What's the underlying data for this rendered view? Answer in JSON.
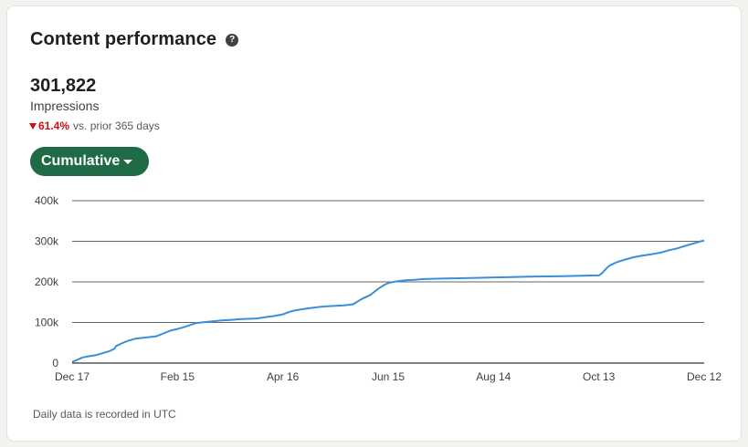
{
  "header": {
    "title": "Content performance",
    "help_icon": "question-circle-icon"
  },
  "metric": {
    "value": "301,822",
    "label": "Impressions",
    "change_pct": "61.4%",
    "change_text": "vs. prior 365 days",
    "change_direction": "down"
  },
  "dropdown": {
    "label": "Cumulative"
  },
  "footnote": "Daily data is recorded in UTC",
  "colors": {
    "line": "#3a8fd9",
    "button": "#1e6b45",
    "negative": "#cc1016"
  },
  "chart_data": {
    "type": "line",
    "title": "",
    "xlabel": "",
    "ylabel": "",
    "ylim": [
      0,
      400000
    ],
    "yticks": [
      0,
      100000,
      200000,
      300000,
      400000
    ],
    "ytick_labels": [
      "0",
      "100k",
      "200k",
      "300k",
      "400k"
    ],
    "xticks": [
      "Dec 17",
      "Feb 15",
      "Apr 16",
      "Jun 15",
      "Aug 14",
      "Oct 13",
      "Dec 12"
    ],
    "x_range_days": [
      0,
      360
    ],
    "grid": "horizontal",
    "series": [
      {
        "x": [
          0,
          3,
          6,
          10,
          14,
          17,
          21,
          24,
          25,
          28,
          32,
          36,
          40,
          44,
          48,
          52,
          56,
          60,
          64,
          70,
          75,
          80,
          85,
          90,
          95,
          100,
          105,
          110,
          115,
          120,
          123,
          126,
          130,
          135,
          140,
          145,
          150,
          155,
          160,
          165,
          170,
          172,
          175,
          178,
          180,
          183,
          186,
          190,
          195,
          200,
          210,
          220,
          230,
          240,
          250,
          260,
          270,
          280,
          290,
          300,
          302,
          304,
          306,
          310,
          315,
          320,
          325,
          330,
          335,
          340,
          345,
          350,
          355,
          358,
          360
        ],
        "y": [
          3000,
          8000,
          14000,
          17000,
          20000,
          24000,
          29000,
          35000,
          42000,
          48000,
          55000,
          60000,
          62000,
          64000,
          66000,
          73000,
          80000,
          84000,
          89000,
          98000,
          101000,
          103000,
          105000,
          106000,
          108000,
          109000,
          110000,
          113000,
          116000,
          120000,
          125000,
          129000,
          132000,
          135000,
          138000,
          140000,
          141000,
          142000,
          145000,
          158000,
          168000,
          175000,
          185000,
          193000,
          197000,
          200000,
          202000,
          204000,
          205000,
          207000,
          208000,
          209000,
          210000,
          211000,
          212000,
          213000,
          213500,
          214000,
          215000,
          216000,
          222000,
          232000,
          240000,
          248000,
          255000,
          261000,
          265000,
          268000,
          272000,
          278000,
          283000,
          290000,
          296000,
          300000,
          301822
        ]
      }
    ]
  }
}
